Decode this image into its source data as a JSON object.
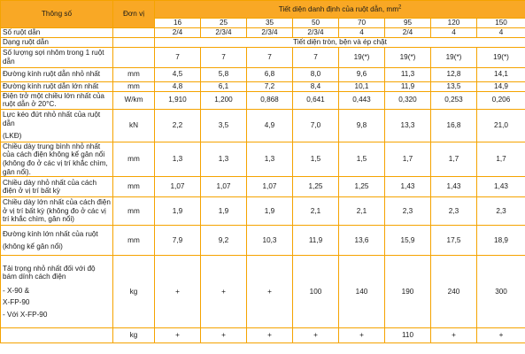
{
  "header": {
    "param": "Thông số",
    "unit": "Đơn vị",
    "section_title": "Tiết diện danh định của ruột dẫn, mm",
    "section_sup": "2"
  },
  "sizes": [
    "16",
    "25",
    "35",
    "50",
    "70",
    "95",
    "120",
    "150"
  ],
  "rows": [
    {
      "label": "Số ruột dẫn",
      "unit": "",
      "values": [
        "2/4",
        "2/3/4",
        "2/3/4",
        "2/3/4",
        "4",
        "2/4",
        "4",
        "4"
      ]
    },
    {
      "label": "Dạng ruột dẫn",
      "unit": "",
      "span": "Tiết diện tròn, bện và ép chặt"
    },
    {
      "label": "Số lượng sợi nhôm trong 1 ruột dẫn",
      "unit": "",
      "values": [
        "7",
        "7",
        "7",
        "7",
        "19(*)",
        "19(*)",
        "19(*)",
        "19(*)"
      ]
    },
    {
      "label": "Đường kính ruột dẫn nhỏ nhất",
      "unit": "mm",
      "values": [
        "4,5",
        "5,8",
        "6,8",
        "8,0",
        "9,6",
        "11,3",
        "12,8",
        "14,1"
      ]
    },
    {
      "label": "Đường kính ruột dẫn lớn nhất",
      "unit": "mm",
      "values": [
        "4,8",
        "6,1",
        "7,2",
        "8,4",
        "10,1",
        "11,9",
        "13,5",
        "14,9"
      ]
    },
    {
      "label": "Điện trở một chiều lớn nhất của ruột dẫn ở 20°C.",
      "unit": "W/km",
      "values": [
        "1,910",
        "1,200",
        "0,868",
        "0,641",
        "0,443",
        "0,320",
        "0,253",
        "0,206"
      ]
    },
    {
      "label": "Lực kéo đứt nhỏ nhất của ruột dẫn",
      "label2": "(LKĐ)",
      "unit": "kN",
      "values": [
        "2,2",
        "3,5",
        "4,9",
        "7,0",
        "9,8",
        "13,3",
        "16,8",
        "21,0"
      ]
    },
    {
      "label": "Chiều dày trung bình nhỏ nhất của cách điện không kể gân nổi (không đo ở các vị trí khắc chìm, gân nổi).",
      "unit": "mm",
      "values": [
        "1,3",
        "1,3",
        "1,3",
        "1,5",
        "1,5",
        "1,7",
        "1,7",
        "1,7"
      ]
    },
    {
      "label": "Chiều dày nhỏ nhất của cách điện ở vị trí bất kỳ",
      "unit": "mm",
      "values": [
        "1,07",
        "1,07",
        "1,07",
        "1,25",
        "1,25",
        "1,43",
        "1,43",
        "1,43"
      ]
    },
    {
      "label": "Chiều dày lớn nhất của cách điện ở vị trí bất kỳ (không đo ở các vị trí khắc chìm, gân nổi)",
      "unit": "mm",
      "values": [
        "1,9",
        "1,9",
        "1,9",
        "2,1",
        "2,1",
        "2,3",
        "2,3",
        "2,3"
      ]
    },
    {
      "label": "Đường kính lớn nhất của ruột",
      "label2": "(không kể gân nổi)",
      "unit": "mm",
      "values": [
        "7,9",
        "9,2",
        "10,3",
        "11,9",
        "13,6",
        "15,9",
        "17,5",
        "18,9"
      ]
    },
    {
      "label": "Tải trọng nhỏ nhất đối với độ bám dính cách điện",
      "label2": "- X-90 &",
      "label3": "X-FP-90",
      "label4": "- Với X-FP-90",
      "unit": "kg",
      "values": [
        "+",
        "+",
        "+",
        "100",
        "140",
        "190",
        "240",
        "300"
      ]
    },
    {
      "label": "",
      "unit": "kg",
      "values": [
        "+",
        "+",
        "+",
        "+",
        "+",
        "110",
        "+",
        "+"
      ]
    }
  ],
  "colors": {
    "accent": "#f9a825",
    "border": "#f5a300"
  }
}
